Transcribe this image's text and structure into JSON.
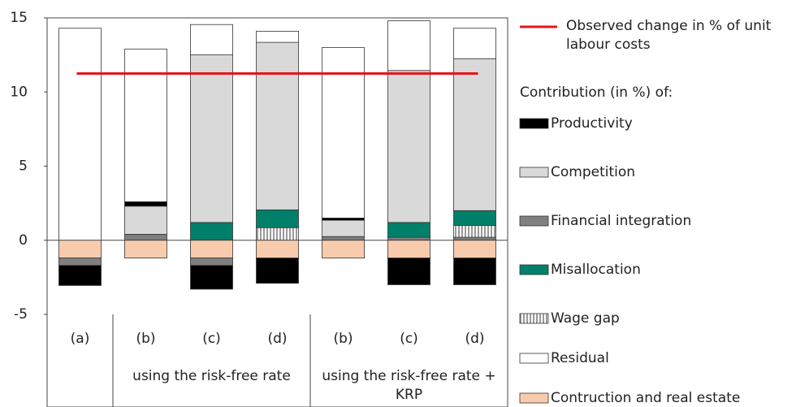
{
  "chart_data": {
    "type": "stacked_bar",
    "categories": [
      "(a)",
      "(b)",
      "(c)",
      "(d)",
      "(b)",
      "(c)",
      "(d)"
    ],
    "groups": [
      {
        "label": "using the risk-free rate",
        "span": [
          1,
          3
        ]
      },
      {
        "label": "using the risk-free rate + KRP",
        "span": [
          4,
          6
        ]
      }
    ],
    "ylim": [
      -5,
      15
    ],
    "yticks": [
      -5,
      0,
      5,
      10,
      15
    ],
    "legend_heading": "Contribution (in %) of:",
    "reference_line": {
      "name": "Observed change in % of unit labour costs",
      "color": "#e8141b",
      "value": 11.25
    },
    "series": [
      {
        "name": "Productivity",
        "color": "#000000",
        "values": [
          -1.35,
          0.3,
          -1.6,
          -1.7,
          0.15,
          -1.8,
          -1.8
        ]
      },
      {
        "name": "Competition",
        "color": "#d9d9d9",
        "values": [
          0,
          1.9,
          11.3,
          11.3,
          1.1,
          10.25,
          10.25
        ]
      },
      {
        "name": "Financial integration",
        "color": "#7f7f7f",
        "values": [
          -0.5,
          0.4,
          -0.5,
          0,
          0.25,
          0.2,
          0.2
        ]
      },
      {
        "name": "Misallocation",
        "color": "#00806a",
        "values": [
          0,
          0,
          1.2,
          1.2,
          0,
          1.0,
          1.0
        ]
      },
      {
        "name": "Wage gap",
        "color": "stripes",
        "values": [
          0,
          0,
          0,
          0.85,
          0,
          0,
          0.8
        ]
      },
      {
        "name": "Residual",
        "color": "#ffffff",
        "values": [
          14.3,
          10.3,
          2.05,
          0.75,
          11.5,
          3.35,
          2.05
        ]
      },
      {
        "name": "Contruction and real estate",
        "color": "#f8cbad",
        "values": [
          -1.2,
          -1.2,
          -1.2,
          -1.2,
          -1.2,
          -1.2,
          -1.2
        ]
      }
    ]
  }
}
